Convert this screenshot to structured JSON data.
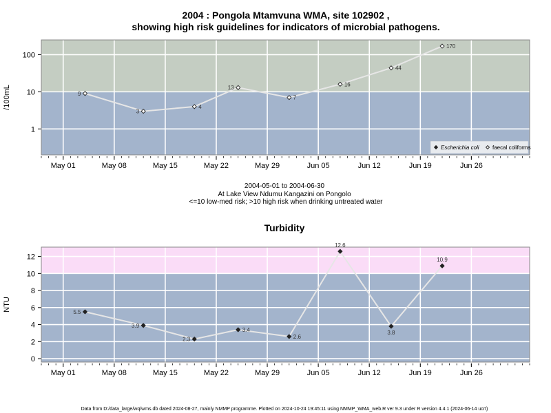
{
  "title_line1": "2004 : Pongola Mtamvuna WMA, site 102902 ,",
  "title_line2": "showing high risk guidelines for indicators of microbial pathogens.",
  "subtitle_lines": [
    "2004-05-01 to 2004-06-30",
    "At Lake View Ndumu Kangazini on Pongolo",
    "<=10 low-med risk; >10 high risk when drinking untreated water"
  ],
  "footer": "Data from D:/data_large/wq/wms.db dated 2024-08-27, mainly NMMP programme. Plotted on 2024-10-24 19:45:11 using NMMP_WMA_web.R ver 9.3 under R version 4.4.1 (2024-06-14 ucrt)",
  "colors": {
    "low_band": "#a3b4cc",
    "high_band_micro": "#c4cdc2",
    "high_band_turb": "#fadcf7",
    "line": "#e6e6e6",
    "grid": "#ffffff"
  },
  "chart_data": [
    {
      "type": "line",
      "title": "",
      "ylabel": "/100mL",
      "y_scale": "log",
      "ylim": [
        0.2,
        250
      ],
      "threshold": 10,
      "x_axis": {
        "min": "2004-04-28",
        "max": "2004-07-04",
        "tick_labels": [
          "May 01",
          "May 08",
          "May 15",
          "May 22",
          "May 29",
          "Jun 05",
          "Jun 12",
          "Jun 19",
          "Jun 26"
        ],
        "tick_dates": [
          "2004-05-01",
          "2004-05-08",
          "2004-05-15",
          "2004-05-22",
          "2004-05-29",
          "2004-06-05",
          "2004-06-12",
          "2004-06-19",
          "2004-06-26"
        ]
      },
      "y_ticks": [
        1,
        10,
        100
      ],
      "y_tick_labels": [
        "1",
        "10",
        "100"
      ],
      "legend": {
        "position": "bottom-right",
        "entries": [
          {
            "name": "Escherichia coli",
            "marker": "filled-diamond"
          },
          {
            "name": "faecal coliforms",
            "marker": "open-diamond"
          }
        ]
      },
      "series": [
        {
          "name": "faecal coliforms",
          "marker": "open-diamond",
          "points": [
            {
              "x": "2004-05-04",
              "y": 9,
              "label": "9",
              "label_side": "left"
            },
            {
              "x": "2004-05-12",
              "y": 3,
              "label": "3",
              "label_side": "left"
            },
            {
              "x": "2004-05-19",
              "y": 4,
              "label": "4",
              "label_side": "right"
            },
            {
              "x": "2004-05-25",
              "y": 13,
              "label": "13",
              "label_side": "left"
            },
            {
              "x": "2004-06-01",
              "y": 7,
              "label": "7",
              "label_side": "right"
            },
            {
              "x": "2004-06-08",
              "y": 16,
              "label": "16",
              "label_side": "right"
            },
            {
              "x": "2004-06-15",
              "y": 44,
              "label": "44",
              "label_side": "right"
            },
            {
              "x": "2004-06-22",
              "y": 170,
              "label": "170",
              "label_side": "right"
            }
          ]
        }
      ]
    },
    {
      "type": "line",
      "title": "Turbidity",
      "ylabel": "NTU",
      "y_scale": "linear",
      "ylim": [
        -0.4,
        13.1
      ],
      "threshold": 10,
      "x_axis": {
        "min": "2004-04-28",
        "max": "2004-07-04",
        "tick_labels": [
          "May 01",
          "May 08",
          "May 15",
          "May 22",
          "May 29",
          "Jun 05",
          "Jun 12",
          "Jun 19",
          "Jun 26"
        ],
        "tick_dates": [
          "2004-05-01",
          "2004-05-08",
          "2004-05-15",
          "2004-05-22",
          "2004-05-29",
          "2004-06-05",
          "2004-06-12",
          "2004-06-19",
          "2004-06-26"
        ]
      },
      "y_ticks": [
        0,
        2,
        4,
        6,
        8,
        10,
        12
      ],
      "y_tick_labels": [
        "0",
        "2",
        "4",
        "6",
        "8",
        "10",
        "12"
      ],
      "series": [
        {
          "name": "",
          "marker": "filled-diamond",
          "points": [
            {
              "x": "2004-05-04",
              "y": 5.5,
              "label": "5.5",
              "label_side": "left"
            },
            {
              "x": "2004-05-12",
              "y": 3.9,
              "label": "3.9",
              "label_side": "left"
            },
            {
              "x": "2004-05-19",
              "y": 2.3,
              "label": "2.3",
              "label_side": "left"
            },
            {
              "x": "2004-05-25",
              "y": 3.4,
              "label": "3.4",
              "label_side": "right"
            },
            {
              "x": "2004-06-01",
              "y": 2.6,
              "label": "2.6",
              "label_side": "right"
            },
            {
              "x": "2004-06-08",
              "y": 12.6,
              "label": "12.6",
              "label_side": "above"
            },
            {
              "x": "2004-06-15",
              "y": 3.8,
              "label": "3.8",
              "label_side": "below"
            },
            {
              "x": "2004-06-22",
              "y": 10.9,
              "label": "10.9",
              "label_side": "above"
            }
          ]
        }
      ]
    }
  ]
}
